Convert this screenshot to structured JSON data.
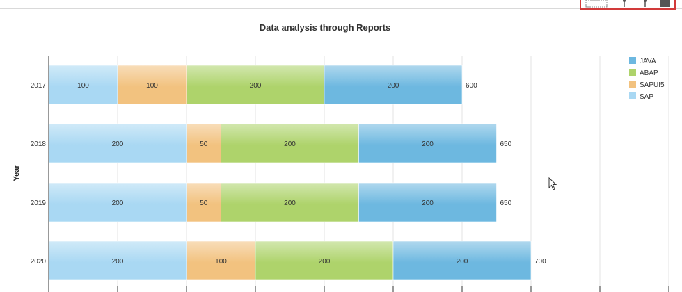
{
  "toolbar": {
    "buttons": [
      {
        "name": "select-tool",
        "icon": "select-box-icon"
      },
      {
        "name": "zoom-in",
        "icon": "pin-icon"
      },
      {
        "name": "zoom-out",
        "icon": "pin-icon"
      },
      {
        "name": "fullscreen",
        "icon": "window-icon"
      }
    ],
    "highlight_color": "#d23a3a"
  },
  "chart_data": {
    "type": "bar",
    "orientation": "horizontal",
    "stacked": true,
    "title": "Data analysis through Reports",
    "ylabel": "Year",
    "xlabel": "",
    "categories": [
      "2017",
      "2018",
      "2019",
      "2020"
    ],
    "series": [
      {
        "name": "SAP",
        "values": [
          100,
          200,
          200,
          200
        ],
        "color": "#a9d8f3"
      },
      {
        "name": "SAPUI5",
        "values": [
          100,
          50,
          50,
          100
        ],
        "color": "#f2c27f"
      },
      {
        "name": "ABAP",
        "values": [
          200,
          200,
          200,
          200
        ],
        "color": "#aed36b"
      },
      {
        "name": "JAVA",
        "values": [
          200,
          200,
          200,
          200
        ],
        "color": "#6db8e0"
      }
    ],
    "totals": [
      600,
      650,
      650,
      700
    ],
    "legend": {
      "position": "right",
      "order": [
        "JAVA",
        "ABAP",
        "SAPUI5",
        "SAP"
      ]
    },
    "xlim": [
      0,
      900
    ],
    "grid": true
  }
}
